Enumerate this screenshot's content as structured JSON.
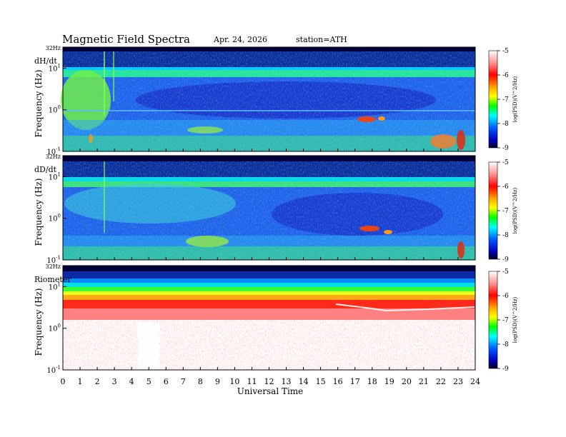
{
  "header": {
    "title": "Magnetic  Field  Spectra",
    "date": "Apr. 24, 2026",
    "station": "station=ATH"
  },
  "colorbar": {
    "ticks": [
      "-5",
      "-6",
      "-7",
      "-8",
      "-9"
    ],
    "label": "log(PSD)(V^2/Hz)",
    "colors": [
      "#ffffff",
      "#ff0000",
      "#ffaa00",
      "#ffff00",
      "#00ff00",
      "#00ffff",
      "#0066ff",
      "#0000cc",
      "#000033"
    ]
  },
  "chart_data": [
    {
      "type": "heatmap",
      "panel_label": "dH/dt",
      "ylabel": "Frequency (Hz)",
      "ytick_labels": [
        "32Hz",
        "10^1",
        "10^0",
        "10^-1"
      ],
      "yscale": "log",
      "ylim": [
        0.1,
        32
      ],
      "xlim": [
        0,
        24
      ],
      "colorbar_ticks": [
        -5,
        -6,
        -7,
        -8,
        -9
      ]
    },
    {
      "type": "heatmap",
      "panel_label": "dD/dt",
      "ylabel": "Frequency (Hz)",
      "ytick_labels": [
        "32Hz",
        "10^1",
        "10^0",
        "10^-1"
      ],
      "yscale": "log",
      "ylim": [
        0.1,
        32
      ],
      "xlim": [
        0,
        24
      ],
      "colorbar_ticks": [
        -5,
        -6,
        -7,
        -8,
        -9
      ]
    },
    {
      "type": "heatmap",
      "panel_label": "Riometer",
      "ylabel": "Frequency (Hz)",
      "ytick_labels": [
        "32Hz",
        "10^1",
        "10^0",
        "10^-1"
      ],
      "yscale": "log",
      "ylim": [
        0.1,
        32
      ],
      "xlim": [
        0,
        24
      ],
      "colorbar_ticks": [
        -5,
        -6,
        -7,
        -8,
        -9
      ]
    }
  ],
  "xaxis": {
    "label": "Universal Time",
    "ticks": [
      "0",
      "1",
      "2",
      "3",
      "4",
      "5",
      "6",
      "7",
      "8",
      "9",
      "10",
      "11",
      "12",
      "13",
      "14",
      "15",
      "16",
      "17",
      "18",
      "19",
      "20",
      "21",
      "22",
      "23",
      "24"
    ]
  }
}
